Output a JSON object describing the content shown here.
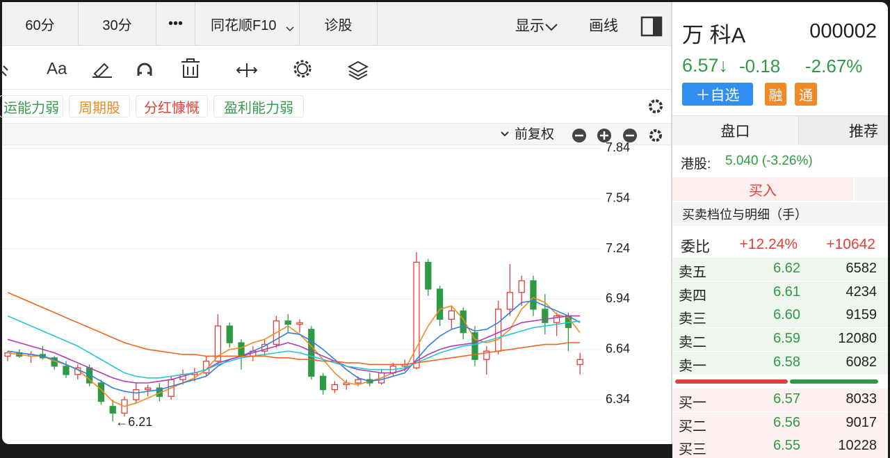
{
  "toolbar": {
    "tabs": [
      "60分",
      "30分",
      "•••",
      "同花顺F10",
      "诊股"
    ],
    "right": [
      "显示",
      "画线"
    ]
  },
  "tags": [
    {
      "text": "运能力弱",
      "color": "#3a9a4e"
    },
    {
      "text": "周期股",
      "color": "#f08a24"
    },
    {
      "text": "分红慷慨",
      "color": "#e2403b"
    },
    {
      "text": "盈利能力弱",
      "color": "#3a9a4e"
    }
  ],
  "adjust": "前复权",
  "chart_data": {
    "type": "candlestick",
    "open": [
      6.6,
      6.62,
      6.6,
      6.61,
      6.59,
      6.54,
      6.49,
      6.53,
      6.44,
      6.3,
      6.26,
      6.34,
      6.4,
      6.41,
      6.36,
      6.46,
      6.49,
      6.5,
      6.57,
      6.78,
      6.68,
      6.6,
      6.63,
      6.67,
      6.81,
      6.79,
      6.76,
      6.48,
      6.4,
      6.43,
      6.44,
      6.46,
      6.44,
      6.5,
      6.54,
      6.53,
      7.16,
      7.0,
      6.82,
      6.87,
      6.74,
      6.58,
      6.63,
      6.88,
      6.98,
      7.05,
      6.88,
      6.8,
      6.84,
      6.55
    ],
    "high": [
      6.63,
      6.64,
      6.63,
      6.66,
      6.6,
      6.57,
      6.55,
      6.55,
      6.46,
      6.34,
      6.36,
      6.44,
      6.43,
      6.44,
      6.48,
      6.52,
      6.53,
      6.6,
      6.85,
      6.8,
      6.7,
      6.66,
      6.7,
      6.84,
      6.85,
      6.82,
      6.78,
      6.5,
      6.45,
      6.46,
      6.48,
      6.5,
      6.52,
      6.56,
      6.58,
      7.22,
      7.18,
      7.02,
      6.9,
      6.89,
      6.78,
      6.66,
      6.93,
      7.15,
      7.08,
      7.08,
      6.97,
      6.86,
      6.86,
      6.62
    ],
    "low": [
      6.57,
      6.59,
      6.56,
      6.58,
      6.52,
      6.47,
      6.46,
      6.42,
      6.31,
      6.21,
      6.24,
      6.32,
      6.36,
      6.33,
      6.34,
      6.43,
      6.45,
      6.48,
      6.55,
      6.65,
      6.52,
      6.57,
      6.6,
      6.65,
      6.74,
      6.74,
      6.46,
      6.37,
      6.38,
      6.4,
      6.42,
      6.42,
      6.43,
      6.48,
      6.51,
      6.52,
      6.96,
      6.78,
      6.76,
      6.7,
      6.54,
      6.49,
      6.61,
      6.84,
      6.9,
      6.84,
      6.73,
      6.72,
      6.63,
      6.49
    ],
    "close": [
      6.62,
      6.6,
      6.61,
      6.59,
      6.54,
      6.49,
      6.53,
      6.44,
      6.33,
      6.26,
      6.34,
      6.4,
      6.41,
      6.36,
      6.46,
      6.49,
      6.5,
      6.57,
      6.78,
      6.68,
      6.6,
      6.63,
      6.67,
      6.81,
      6.79,
      6.8,
      6.48,
      6.4,
      6.43,
      6.44,
      6.46,
      6.44,
      6.5,
      6.54,
      6.55,
      7.16,
      7.0,
      6.82,
      6.87,
      6.74,
      6.58,
      6.63,
      6.88,
      6.98,
      7.05,
      6.88,
      6.8,
      6.84,
      6.77,
      6.58
    ],
    "up_color": "#e2403b",
    "down_color": "#2f9a44",
    "series": [
      {
        "color": "#f08a24",
        "values": [
          6.62,
          6.61,
          6.6,
          6.6,
          6.57,
          6.55,
          6.52,
          6.46,
          6.4,
          6.33,
          6.3,
          6.32,
          6.35,
          6.38,
          6.41,
          6.44,
          6.47,
          6.52,
          6.6,
          6.64,
          6.65,
          6.68,
          6.7,
          6.74,
          6.78,
          6.73,
          6.66,
          6.58,
          6.5,
          6.44,
          6.43,
          6.45,
          6.47,
          6.5,
          6.52,
          6.65,
          6.78,
          6.88,
          6.9,
          6.82,
          6.7,
          6.68,
          6.7,
          6.76,
          6.88,
          6.95,
          6.92,
          6.85,
          6.83,
          6.74
        ]
      },
      {
        "color": "#2f7fe0",
        "values": [
          6.63,
          6.62,
          6.61,
          6.6,
          6.58,
          6.55,
          6.52,
          6.49,
          6.45,
          6.41,
          6.39,
          6.38,
          6.39,
          6.4,
          6.42,
          6.44,
          6.46,
          6.48,
          6.54,
          6.58,
          6.6,
          6.63,
          6.66,
          6.7,
          6.74,
          6.73,
          6.69,
          6.64,
          6.58,
          6.52,
          6.47,
          6.45,
          6.46,
          6.48,
          6.5,
          6.58,
          6.66,
          6.72,
          6.76,
          6.78,
          6.75,
          6.76,
          6.8,
          6.86,
          6.92,
          6.93,
          6.9,
          6.87,
          6.84,
          6.8
        ]
      },
      {
        "color": "#b23bb5",
        "values": [
          6.7,
          6.68,
          6.66,
          6.64,
          6.62,
          6.59,
          6.56,
          6.53,
          6.5,
          6.47,
          6.45,
          6.44,
          6.44,
          6.45,
          6.46,
          6.48,
          6.5,
          6.52,
          6.56,
          6.58,
          6.6,
          6.62,
          6.64,
          6.66,
          6.68,
          6.66,
          6.63,
          6.6,
          6.57,
          6.54,
          6.52,
          6.51,
          6.5,
          6.5,
          6.52,
          6.57,
          6.61,
          6.64,
          6.66,
          6.67,
          6.68,
          6.71,
          6.74,
          6.77,
          6.8,
          6.81,
          6.82,
          6.83,
          6.84,
          6.84
        ]
      },
      {
        "color": "#27c4d8",
        "values": [
          6.84,
          6.81,
          6.78,
          6.75,
          6.72,
          6.69,
          6.66,
          6.62,
          6.58,
          6.54,
          6.5,
          6.48,
          6.47,
          6.47,
          6.48,
          6.49,
          6.5,
          6.52,
          6.55,
          6.57,
          6.59,
          6.6,
          6.61,
          6.62,
          6.63,
          6.62,
          6.6,
          6.58,
          6.56,
          6.54,
          6.53,
          6.52,
          6.52,
          6.52,
          6.53,
          6.56,
          6.59,
          6.62,
          6.64,
          6.66,
          6.67,
          6.69,
          6.71,
          6.73,
          6.75,
          6.77,
          6.78,
          6.79,
          6.8,
          6.81
        ]
      },
      {
        "color": "#f0641e",
        "values": [
          6.98,
          6.95,
          6.92,
          6.89,
          6.86,
          6.83,
          6.8,
          6.77,
          6.74,
          6.71,
          6.68,
          6.66,
          6.64,
          6.63,
          6.62,
          6.61,
          6.61,
          6.6,
          6.6,
          6.6,
          6.6,
          6.6,
          6.6,
          6.59,
          6.59,
          6.58,
          6.58,
          6.57,
          6.57,
          6.56,
          6.56,
          6.55,
          6.55,
          6.55,
          6.55,
          6.56,
          6.57,
          6.58,
          6.59,
          6.6,
          6.61,
          6.62,
          6.63,
          6.64,
          6.65,
          6.66,
          6.67,
          6.67,
          6.68,
          6.68
        ]
      }
    ],
    "ylim": [
      6.1,
      7.85
    ],
    "yticks": [
      6.34,
      6.64,
      6.94,
      7.24,
      7.54,
      7.84
    ],
    "grid": true,
    "annotations": [
      {
        "text": "←6.21",
        "value": 6.21
      }
    ]
  },
  "quote": {
    "name": "万 科A",
    "code": "000002",
    "price": "6.57↓",
    "change": "-0.18",
    "change_pct": "-2.67%",
    "buttons": [
      "＋自选",
      "融",
      "通"
    ],
    "tabs": [
      "盘口",
      "推荐"
    ],
    "hk_label": "港股:",
    "hk_value": "5.040 (-3.26%)",
    "buy": "买入",
    "detail_title": "买卖档位与明细（手）",
    "ratio": {
      "label": "委比",
      "pct": "+12.24%",
      "diff": "+10642"
    }
  },
  "asks": [
    [
      "卖五",
      "6.62",
      "6582"
    ],
    [
      "卖四",
      "6.61",
      "4234"
    ],
    [
      "卖三",
      "6.60",
      "9159"
    ],
    [
      "卖二",
      "6.59",
      "12080"
    ],
    [
      "卖一",
      "6.58",
      "6082"
    ]
  ],
  "bids": [
    [
      "买一",
      "6.57",
      "8033"
    ],
    [
      "买二",
      "6.56",
      "9017"
    ],
    [
      "买三",
      "6.55",
      "10228"
    ]
  ]
}
